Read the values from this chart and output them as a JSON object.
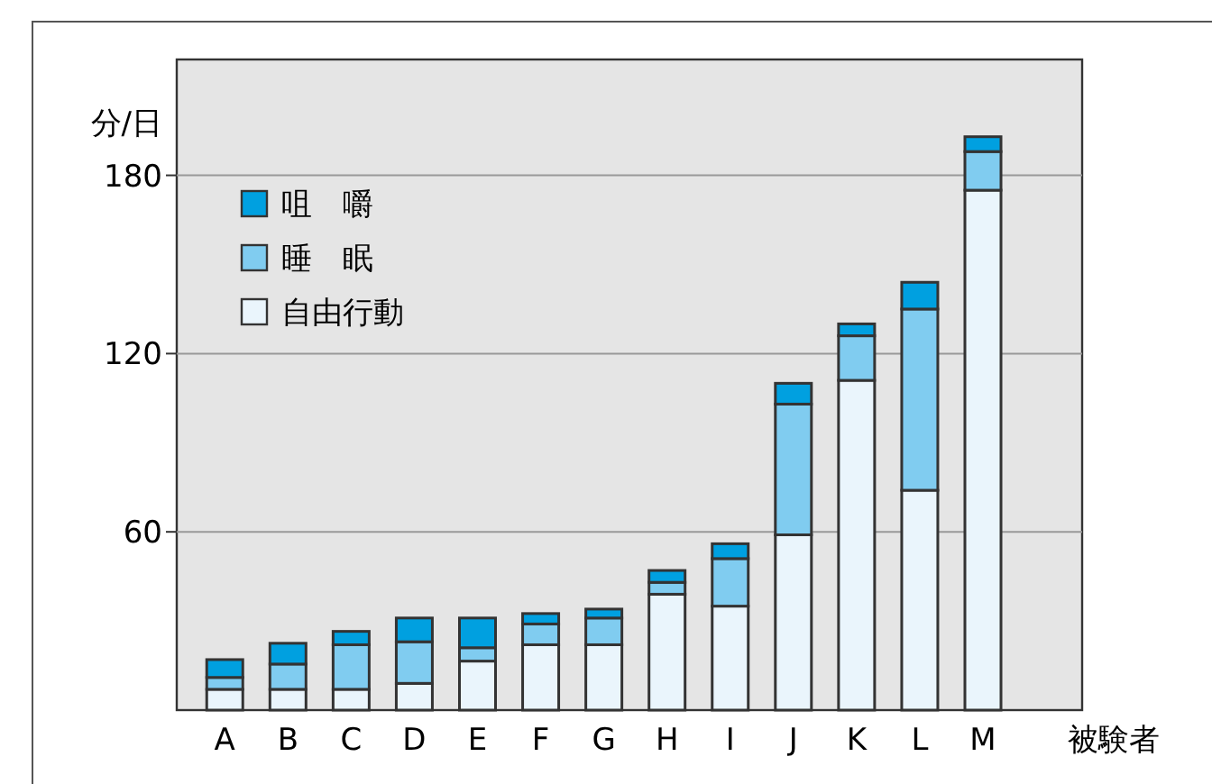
{
  "chart_data": {
    "type": "bar",
    "stacked": true,
    "ylabel": "分/日",
    "xlabel": "被験者",
    "categories": [
      "A",
      "B",
      "C",
      "D",
      "E",
      "F",
      "G",
      "H",
      "I",
      "J",
      "K",
      "L",
      "M"
    ],
    "series": [
      {
        "name": "自由行動",
        "color": "#eaf5fc",
        "values": [
          7,
          7,
          7,
          9,
          16.5,
          22,
          22,
          39,
          35,
          59,
          111,
          74,
          175
        ]
      },
      {
        "name": "睡　眠",
        "color": "#80ccf0",
        "values": [
          4,
          8.5,
          15,
          14,
          4.5,
          7,
          9,
          4,
          16,
          44,
          15,
          61,
          13
        ]
      },
      {
        "name": "咀　嚼",
        "color": "#00a0e0",
        "values": [
          6,
          7,
          4.5,
          8,
          10,
          3.5,
          3,
          4,
          5,
          7,
          4,
          9,
          5
        ]
      }
    ],
    "ylim": [
      0,
      219
    ],
    "yticks": [
      60,
      120,
      180
    ],
    "grid": "y",
    "legend": "top left"
  }
}
